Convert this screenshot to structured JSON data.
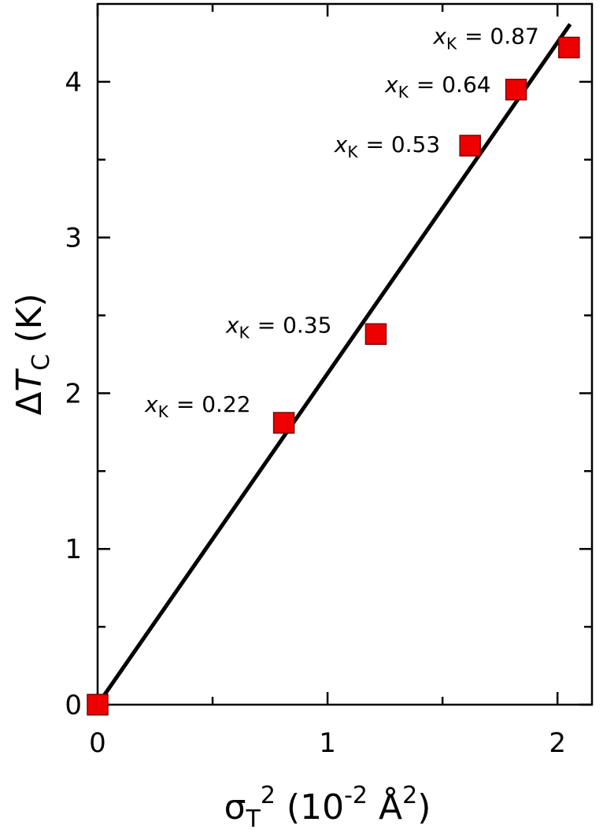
{
  "chart_data": {
    "type": "scatter",
    "x_label": [
      "σ",
      "T",
      "2",
      " (10",
      "-2",
      " Å",
      "2",
      ")"
    ],
    "y_label": [
      "Δ",
      "T",
      "C",
      " (K)"
    ],
    "series": [
      {
        "color": "#ee0000",
        "x": [
          0,
          0.81,
          1.21,
          1.62,
          1.82,
          2.05
        ],
        "values": [
          0,
          1.81,
          2.38,
          3.59,
          3.95,
          4.22
        ]
      }
    ],
    "fit": {
      "color": "#000000",
      "x": [
        0,
        2.055
      ],
      "values": [
        0,
        4.37
      ]
    },
    "annotations": [
      {
        "point": 1,
        "var": "x",
        "sub": "K",
        "text": "= 0.22"
      },
      {
        "point": 2,
        "var": "x",
        "sub": "K",
        "text": "= 0.35"
      },
      {
        "point": 3,
        "var": "x",
        "sub": "K",
        "text": "= 0.53"
      },
      {
        "point": 4,
        "var": "x",
        "sub": "K",
        "text": "= 0.64"
      },
      {
        "point": 5,
        "var": "x",
        "sub": "K",
        "text": "= 0.87"
      }
    ],
    "xlim": [
      0,
      2.15
    ],
    "xticks": [
      0,
      1,
      2
    ],
    "xminor": [
      0.5,
      1.5
    ],
    "ylim": [
      0,
      4.5
    ],
    "yticks": [
      0,
      1,
      2,
      3,
      4
    ],
    "yminor": [
      0.5,
      1.5,
      2.5,
      3.5
    ]
  }
}
